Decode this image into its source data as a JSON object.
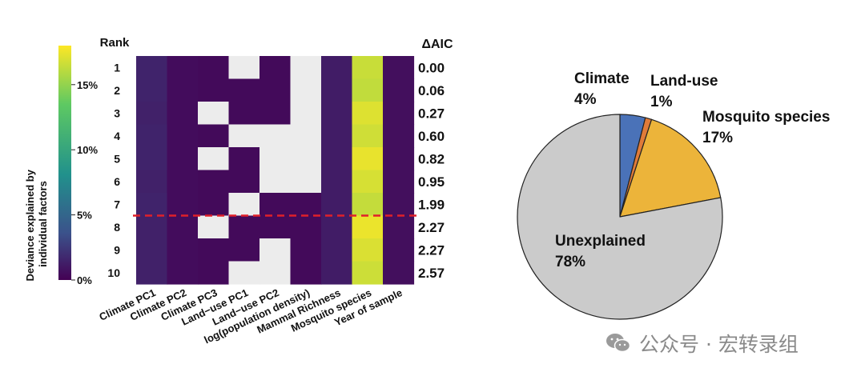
{
  "chart_data": [
    {
      "type": "heatmap",
      "title": "",
      "rank_label": "Rank",
      "aic_label": "ΔAIC",
      "factors": [
        "Climate PC1",
        "Climate PC2",
        "Climate PC3",
        "Land−use PC1",
        "Land−use PC2",
        "log(population density)",
        "Mammal Richness",
        "Mosquito species",
        "Year of sample"
      ],
      "ranks": [
        "1",
        "2",
        "3",
        "4",
        "5",
        "6",
        "7",
        "8",
        "9",
        "10"
      ],
      "delta_aic": [
        "0.00",
        "0.06",
        "0.27",
        "0.60",
        "0.82",
        "0.95",
        "1.99",
        "2.27",
        "2.27",
        "2.57"
      ],
      "colorbar": {
        "label": "Deviance explained by individual factors",
        "range": [
          0,
          18
        ],
        "ticks": [
          {
            "value": 0,
            "label": "0%"
          },
          {
            "value": 5,
            "label": "5%"
          },
          {
            "value": 10,
            "label": "10%"
          },
          {
            "value": 15,
            "label": "15%"
          }
        ]
      },
      "excluded_color": "#ececec",
      "values": [
        [
          1.5,
          0.5,
          0.4,
          null,
          0.4,
          null,
          1.2,
          16.5,
          0.6
        ],
        [
          1.5,
          0.5,
          0.4,
          0.4,
          0.4,
          null,
          1.2,
          16.3,
          0.6
        ],
        [
          1.4,
          0.5,
          null,
          0.4,
          0.4,
          null,
          1.2,
          17.1,
          0.6
        ],
        [
          1.5,
          0.5,
          0.4,
          null,
          null,
          null,
          1.2,
          16.7,
          0.6
        ],
        [
          1.5,
          0.5,
          null,
          0.4,
          null,
          null,
          1.2,
          17.4,
          0.6
        ],
        [
          1.4,
          0.5,
          0.4,
          0.4,
          null,
          null,
          1.2,
          16.9,
          0.6
        ],
        [
          1.5,
          0.5,
          0.4,
          null,
          0.4,
          0.4,
          1.2,
          16.4,
          0.6
        ],
        [
          1.4,
          0.5,
          null,
          0.4,
          0.4,
          0.4,
          1.2,
          17.5,
          0.6
        ],
        [
          1.4,
          0.5,
          0.4,
          0.4,
          null,
          0.4,
          1.2,
          17.0,
          0.6
        ],
        [
          1.4,
          0.5,
          0.4,
          null,
          null,
          0.4,
          1.2,
          16.6,
          0.6
        ]
      ],
      "cutoff_between_ranks": [
        7,
        8
      ],
      "cutoff_color": "#e0202a"
    },
    {
      "type": "pie",
      "title": "",
      "slices": [
        {
          "name": "Climate",
          "value": 4,
          "label": "4%",
          "color": "#4a72b8"
        },
        {
          "name": "Land-use",
          "value": 1,
          "label": "1%",
          "color": "#e07b39"
        },
        {
          "name": "Mosquito species",
          "value": 17,
          "label": "17%",
          "color": "#ecb43a"
        },
        {
          "name": "Unexplained",
          "value": 78,
          "label": "78%",
          "color": "#cbcbcb"
        }
      ]
    }
  ],
  "watermark": {
    "text": "公众号 · 宏转录组",
    "icon": "wechat-icon"
  }
}
